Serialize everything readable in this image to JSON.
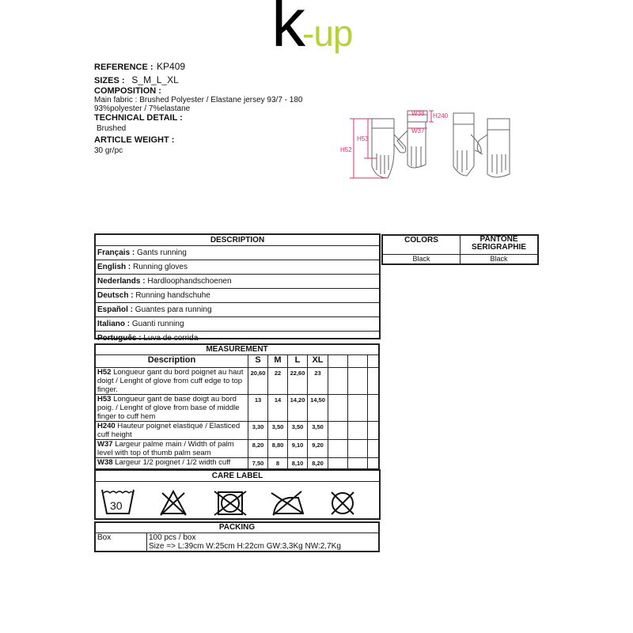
{
  "logo": {
    "text_k": "k",
    "text_rest": "-up",
    "brand_color": "#b5d334"
  },
  "info": {
    "reference_label": "REFERENCE :",
    "reference": "KP409",
    "sizes_label": "SIZES :",
    "sizes": "S_M_L_XL",
    "composition_label": "COMPOSITION :",
    "composition_1": "Main fabric : Brushed Polyester / Elastane jersey 93/7 - 180",
    "composition_2": "93%polyester / 7%elastane",
    "technical_label": "TECHNICAL DETAIL :",
    "technical": "Brushed",
    "weight_label": "ARTICLE WEIGHT :",
    "weight": "30 gr/pc"
  },
  "diagram": {
    "labels": {
      "h52": "H52",
      "h53": "H53",
      "w38": "W38",
      "w37": "W37",
      "h240": "H240"
    },
    "accent": "#e0306a"
  },
  "description": {
    "title": "DESCRIPTION",
    "items": [
      {
        "lang": "Français :",
        "text": "Gants running"
      },
      {
        "lang": "English :",
        "text": "Running gloves"
      },
      {
        "lang": "Nederlands :",
        "text": "Hardloophandschoenen"
      },
      {
        "lang": "Deutsch :",
        "text": "Running handschuhe"
      },
      {
        "lang": "Español :",
        "text": "Guantes para running"
      },
      {
        "lang": "Italiano :",
        "text": "Guanti running"
      },
      {
        "lang": "Português :",
        "text": "Luva de corrida"
      }
    ]
  },
  "colors": {
    "col1": "COLORS",
    "col2": "PANTONE SERIGRAPHIE",
    "val1": "Black",
    "val2": "Black"
  },
  "measurement": {
    "title": "MEASUREMENT",
    "headers": [
      "Description",
      "S",
      "M",
      "L",
      "XL"
    ],
    "rows": [
      {
        "code": "H52",
        "desc": "Longueur gant du bord poignet au haut doigt / Lenght of glove from cuff edge to top finger.",
        "values": [
          "20,60",
          "22",
          "22,60",
          "23"
        ]
      },
      {
        "code": "H53",
        "desc": "Longueur gant de base doigt au bord poig. / Lenght of glove from base of middle finger to cuff hem",
        "values": [
          "13",
          "14",
          "14,20",
          "14,50"
        ]
      },
      {
        "code": "H240",
        "desc": "Hauteur poignet elastiqué / Elasticed cuff height",
        "values": [
          "3,30",
          "3,50",
          "3,50",
          "3,50"
        ]
      },
      {
        "code": "W37",
        "desc": "Largeur palme main / Width of palm level with top of thumb palm seam",
        "values": [
          "8,20",
          "8,80",
          "9,10",
          "9,20"
        ]
      },
      {
        "code": "W38",
        "desc": "Largeur 1/2 poignet / 1/2 width cuff",
        "values": [
          "7,50",
          "8",
          "8,10",
          "8,20"
        ]
      }
    ]
  },
  "care": {
    "title": "CARE LABEL",
    "wash_temp": "30",
    "icons": [
      "wash-30-icon",
      "no-bleach-icon",
      "no-tumble-dry-icon",
      "no-iron-icon",
      "no-dry-clean-icon"
    ]
  },
  "packing": {
    "title": "PACKING",
    "label": "Box",
    "line1": "100 pcs / box",
    "line2": "Size => L:39cm W:25cm H:22cm GW:3,3Kg NW:2,7Kg"
  }
}
